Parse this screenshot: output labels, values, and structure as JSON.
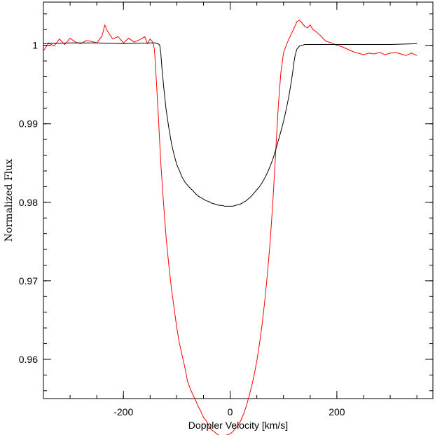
{
  "chart_data": {
    "type": "line",
    "title": "",
    "xlabel": "Doppler Velocity [km/s]",
    "ylabel": "Normalized Flux",
    "xlim": [
      -350,
      380
    ],
    "ylim": [
      0.955,
      1.0055
    ],
    "grid": false,
    "x_ticks_major": [
      -200,
      0,
      200
    ],
    "x_tick_labels": [
      "-200",
      "0",
      "200"
    ],
    "x_ticks_minor_step": 50,
    "y_ticks_major": [
      0.96,
      0.97,
      0.98,
      0.99,
      1.0
    ],
    "y_tick_labels": [
      "0.96",
      "0.97",
      "0.98",
      "0.99",
      "1"
    ],
    "y_ticks_minor_step": 0.002,
    "series": [
      {
        "color": "#ff0000",
        "x": [
          -350,
          -340,
          -330,
          -320,
          -310,
          -300,
          -290,
          -280,
          -270,
          -260,
          -250,
          -240,
          -235,
          -230,
          -220,
          -210,
          -200,
          -190,
          -180,
          -170,
          -160,
          -155,
          -150,
          -145,
          -142,
          -140,
          -135,
          -130,
          -125,
          -120,
          -115,
          -110,
          -105,
          -100,
          -95,
          -90,
          -85,
          -80,
          -75,
          -70,
          -65,
          -60,
          -55,
          -50,
          -45,
          -40,
          -35,
          -30,
          -25,
          -20,
          -15,
          -10,
          -5,
          0,
          5,
          10,
          15,
          20,
          25,
          30,
          35,
          40,
          45,
          50,
          55,
          60,
          65,
          70,
          75,
          80,
          85,
          90,
          95,
          100,
          105,
          110,
          115,
          120,
          125,
          130,
          135,
          140,
          145,
          150,
          155,
          160,
          165,
          170,
          175,
          180,
          190,
          200,
          210,
          220,
          230,
          240,
          250,
          260,
          270,
          280,
          290,
          300,
          310,
          320,
          330,
          340,
          350
        ],
        "y": [
          0.9993,
          1.0003,
          0.9999,
          1.0008,
          1.0001,
          1.0009,
          1.0004,
          1.0002,
          1.0006,
          1.0005,
          1.0003,
          1.0012,
          1.0026,
          1.0018,
          1.0008,
          1.0011,
          1.0003,
          1.0009,
          1.0004,
          1.0007,
          1.0011,
          1.0002,
          1.0008,
          1.0004,
          0.9995,
          0.9975,
          0.9915,
          0.985,
          0.98,
          0.9755,
          0.972,
          0.969,
          0.9665,
          0.964,
          0.962,
          0.9605,
          0.959,
          0.9572,
          0.9563,
          0.9555,
          0.9548,
          0.954,
          0.9534,
          0.9526,
          0.9522,
          0.9515,
          0.951,
          0.9508,
          0.9505,
          0.9503,
          0.9502,
          0.9503,
          0.9504,
          0.9505,
          0.9508,
          0.9512,
          0.9516,
          0.9522,
          0.953,
          0.954,
          0.9552,
          0.9565,
          0.958,
          0.9598,
          0.962,
          0.9645,
          0.9675,
          0.971,
          0.975,
          0.98,
          0.986,
          0.992,
          0.9965,
          0.999,
          1.0,
          1.0008,
          1.0015,
          1.0022,
          1.003,
          1.0032,
          1.0028,
          1.0024,
          1.0022,
          1.0026,
          1.002,
          1.0018,
          1.0015,
          1.0012,
          1.0008,
          1.0005,
          1.0003,
          1.0,
          0.9998,
          0.9995,
          0.9992,
          0.999,
          0.9988,
          0.999,
          0.9989,
          0.9991,
          0.9988,
          0.999,
          0.9991,
          0.9989,
          0.9987,
          0.999,
          0.9987
        ]
      },
      {
        "color": "#000000",
        "x": [
          -350,
          -300,
          -250,
          -200,
          -150,
          -140,
          -135,
          -132,
          -130,
          -128,
          -125,
          -122,
          -120,
          -115,
          -110,
          -105,
          -100,
          -95,
          -90,
          -85,
          -80,
          -75,
          -70,
          -65,
          -60,
          -55,
          -50,
          -45,
          -40,
          -35,
          -30,
          -25,
          -20,
          -15,
          -10,
          -5,
          0,
          5,
          10,
          15,
          20,
          25,
          30,
          35,
          40,
          45,
          50,
          55,
          60,
          65,
          70,
          75,
          80,
          85,
          90,
          95,
          100,
          105,
          110,
          115,
          118,
          120,
          122,
          125,
          130,
          135,
          140,
          150,
          200,
          250,
          300,
          350
        ],
        "y": [
          1.0002,
          1.0003,
          1.0003,
          1.0002,
          1.0003,
          1.0003,
          1.0002,
          1.0,
          0.999,
          0.9972,
          0.995,
          0.993,
          0.9918,
          0.9895,
          0.9875,
          0.986,
          0.9848,
          0.984,
          0.9832,
          0.9826,
          0.9822,
          0.9818,
          0.9815,
          0.9811,
          0.9808,
          0.9806,
          0.9804,
          0.9802,
          0.9801,
          0.9799,
          0.9798,
          0.9797,
          0.9796,
          0.9796,
          0.9795,
          0.9795,
          0.9795,
          0.9795,
          0.9796,
          0.9797,
          0.9798,
          0.98,
          0.9802,
          0.9805,
          0.9808,
          0.9812,
          0.9816,
          0.982,
          0.9825,
          0.9831,
          0.9838,
          0.9846,
          0.9855,
          0.9866,
          0.9878,
          0.989,
          0.9903,
          0.9918,
          0.9935,
          0.9955,
          0.997,
          0.998,
          0.9988,
          0.9995,
          0.9999,
          1.0,
          1.0001,
          1.0001,
          1.0001,
          1.0001,
          1.0001,
          1.0002
        ]
      }
    ]
  }
}
